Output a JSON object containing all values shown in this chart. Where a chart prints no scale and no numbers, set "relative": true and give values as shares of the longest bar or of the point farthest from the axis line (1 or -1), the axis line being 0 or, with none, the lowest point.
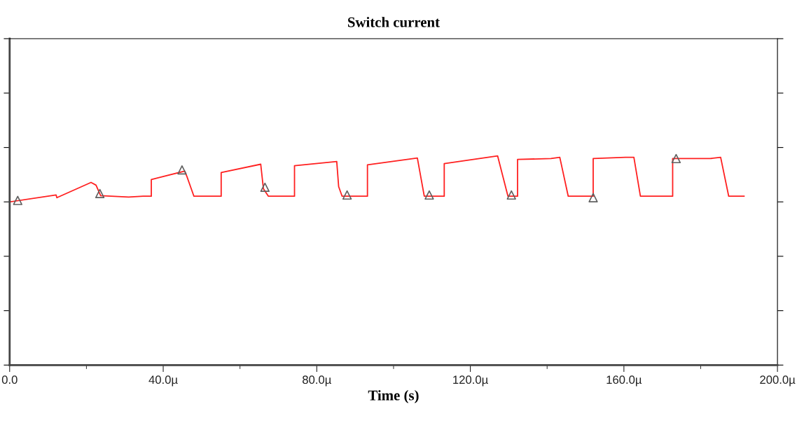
{
  "chart_data": {
    "type": "line",
    "title": "Switch current",
    "xlabel": "Time (s)",
    "relative": true,
    "xlim": [
      0,
      200
    ],
    "xticks": [
      {
        "value": 0,
        "label": "0.0"
      },
      {
        "value": 20,
        "label": null
      },
      {
        "value": 40,
        "label": "40.0µ"
      },
      {
        "value": 60,
        "label": null
      },
      {
        "value": 80,
        "label": "80.0µ"
      },
      {
        "value": 100,
        "label": null
      },
      {
        "value": 120,
        "label": "120.0µ"
      },
      {
        "value": 140,
        "label": null
      },
      {
        "value": 160,
        "label": "160.0µ"
      },
      {
        "value": 180,
        "label": null
      },
      {
        "value": 200,
        "label": "200.0µ"
      }
    ],
    "tick_labels": "x",
    "grid": false,
    "legend": false,
    "series": [
      {
        "color": "#ff2020",
        "marker": "none",
        "x": [
          0,
          12.1,
          12.3,
          21.2,
          22.5,
          23.7,
          31.0,
          34.8,
          36.9,
          36.9,
          45.6,
          46.2,
          48.0,
          55.1,
          55.1,
          65.4,
          66.1,
          67.4,
          74.2,
          74.2,
          85.2,
          85.7,
          86.6,
          93.2,
          93.2,
          106.2,
          108.0,
          113.2,
          113.2,
          127.1,
          129.8,
          132.3,
          132.3,
          141.0,
          143.3,
          145.5,
          152.0,
          152.0,
          160.4,
          162.6,
          164.3,
          172.7,
          172.7,
          182.5,
          185.2,
          187.3,
          191.3
        ],
        "values": [
          0.78,
          0.813,
          0.8,
          0.873,
          0.86,
          0.81,
          0.803,
          0.807,
          0.807,
          0.887,
          0.927,
          0.9,
          0.807,
          0.807,
          0.92,
          0.96,
          0.843,
          0.807,
          0.807,
          0.953,
          0.973,
          0.853,
          0.807,
          0.807,
          0.957,
          0.99,
          0.807,
          0.807,
          0.963,
          1.0,
          0.807,
          0.807,
          0.983,
          0.987,
          0.993,
          0.807,
          0.807,
          0.987,
          0.993,
          0.993,
          0.807,
          0.807,
          0.987,
          0.987,
          0.993,
          0.807,
          0.807
        ]
      },
      {
        "type": "scatter",
        "color": "#606060",
        "marker": "triangle",
        "x": [
          2.1,
          23.5,
          44.9,
          66.5,
          87.9,
          109.3,
          130.7,
          152.0,
          173.6
        ],
        "values": [
          0.787,
          0.82,
          0.933,
          0.85,
          0.813,
          0.813,
          0.813,
          0.8,
          0.987
        ]
      }
    ]
  }
}
